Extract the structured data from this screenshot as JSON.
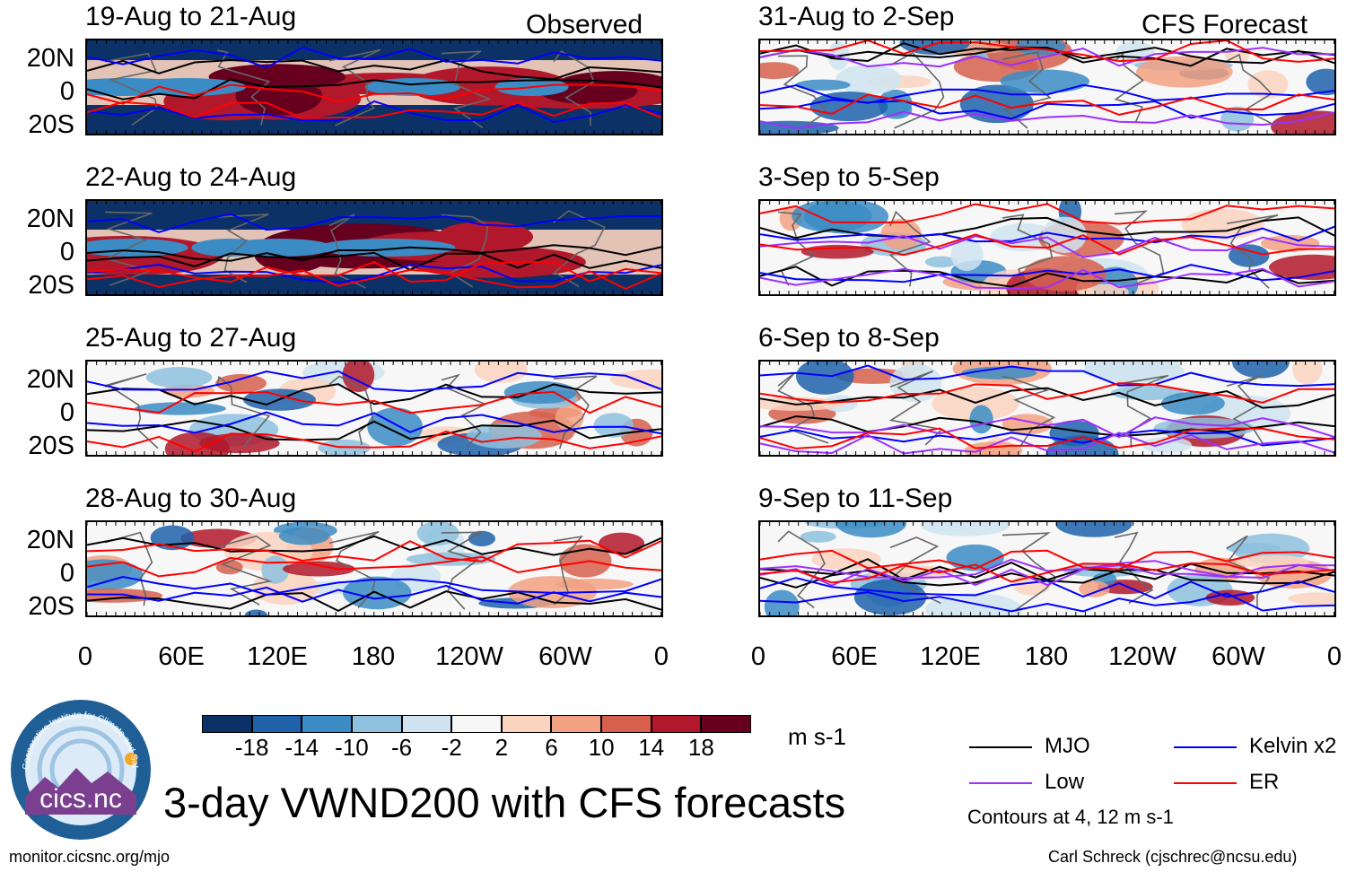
{
  "chart_data": {
    "type": "heatmap",
    "title": "3-day VWND200 with CFS forecasts",
    "variable": "VWND200",
    "units": "m s-1",
    "columns": [
      {
        "label": "Observed"
      },
      {
        "label": "CFS Forecast"
      }
    ],
    "panels": [
      {
        "period": "19-Aug to 21-Aug",
        "column": "Observed",
        "style": "strong"
      },
      {
        "period": "22-Aug to 24-Aug",
        "column": "Observed",
        "style": "strong"
      },
      {
        "period": "25-Aug to 27-Aug",
        "column": "Observed",
        "style": "weak"
      },
      {
        "period": "28-Aug to 30-Aug",
        "column": "Observed",
        "style": "weak"
      },
      {
        "period": "31-Aug to 2-Sep",
        "column": "CFS Forecast",
        "style": "weak"
      },
      {
        "period": "3-Sep to 5-Sep",
        "column": "CFS Forecast",
        "style": "weak"
      },
      {
        "period": "6-Sep to 8-Sep",
        "column": "CFS Forecast",
        "style": "weak"
      },
      {
        "period": "9-Sep to 11-Sep",
        "column": "CFS Forecast",
        "style": "weak"
      }
    ],
    "lat_ticks": [
      "20N",
      "0",
      "20S"
    ],
    "lon_ticks": [
      "0",
      "60E",
      "120E",
      "180",
      "120W",
      "60W",
      "0"
    ],
    "colorbar": {
      "labels": [
        "-18",
        "-14",
        "-10",
        "-6",
        "-2",
        "2",
        "6",
        "10",
        "14",
        "18"
      ],
      "colors": [
        "#0b3167",
        "#1f62aa",
        "#3b8cc4",
        "#8dc1de",
        "#cfe4f0",
        "#f7f7f7",
        "#fbd4bf",
        "#f2a183",
        "#d6604d",
        "#b2182b",
        "#67001f"
      ]
    },
    "legend": [
      {
        "name": "MJO",
        "color": "#000000"
      },
      {
        "name": "Kelvin x2",
        "color": "#0000ff"
      },
      {
        "name": "Low",
        "color": "#9b30ff"
      },
      {
        "name": "ER",
        "color": "#ff0000"
      }
    ],
    "contour_note": "Contours at 4, 12 m s-1"
  },
  "logo": {
    "text": "cics.nc",
    "ring_text": "Cooperative Institute for Climate and Satellites"
  },
  "footer": {
    "left": "monitor.cicsnc.org/mjo",
    "right": "Carl Schreck (cjschrec@ncsu.edu)"
  }
}
